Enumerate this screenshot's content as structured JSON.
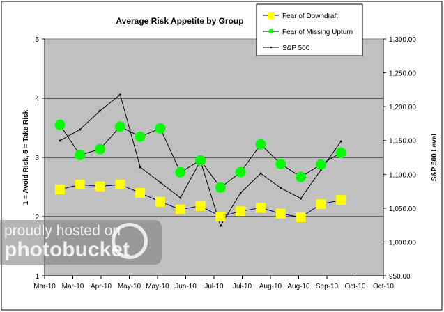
{
  "chart_data": {
    "type": "line",
    "title": "Average Risk Appetite by Group",
    "ylabel": "1 = Avoid Risk, 5 = Take Risk",
    "y2label": "S&P 500 Level",
    "ylim": [
      1,
      5
    ],
    "y2lim": [
      950,
      1300
    ],
    "yticks": [
      "1",
      "2",
      "3",
      "4",
      "5"
    ],
    "y2ticks": [
      "950.00",
      "1,000.00",
      "1,050.00",
      "1,100.00",
      "1,150.00",
      "1,200.00",
      "1,250.00",
      "1,300.00"
    ],
    "xticks": [
      "Mar-10",
      "Mar-10",
      "Apr-10",
      "May-10",
      "May-10",
      "Jun-10",
      "Jul-10",
      "Jul-10",
      "Aug-10",
      "Aug-10",
      "Sep-10",
      "Oct-10",
      "Oct-10"
    ],
    "grid": "horizontal major lines on left axis",
    "legend_position": "top-right",
    "plot_background": "#c0c0c0",
    "series": [
      {
        "name": "Fear of Downdraft",
        "axis": "left",
        "marker": "square",
        "color": "#ffff00",
        "line_color": "#000080",
        "values": [
          2.46,
          2.54,
          2.51,
          2.54,
          2.4,
          2.25,
          2.12,
          2.18,
          2.0,
          2.09,
          2.15,
          2.05,
          1.99,
          2.21,
          2.28
        ]
      },
      {
        "name": "Fear of Missing Upturn",
        "axis": "left",
        "marker": "circle",
        "color": "#00ff00",
        "line_color": "#000000",
        "values": [
          3.55,
          3.04,
          3.14,
          3.52,
          3.35,
          3.49,
          2.75,
          2.95,
          2.49,
          2.75,
          3.22,
          2.89,
          2.67,
          2.88,
          3.08
        ]
      },
      {
        "name": "S&P 500",
        "axis": "right",
        "marker": "dot",
        "color": "#000000",
        "line_color": "#000000",
        "values": [
          1149.7,
          1166.2,
          1194.0,
          1217.6,
          1110.6,
          1088.0,
          1065.3,
          1119.8,
          1024.0,
          1072.5,
          1101.3,
          1079.7,
          1064.3,
          1106.5,
          1148.7
        ]
      }
    ]
  },
  "watermark": {
    "line1": "proudly hosted on",
    "line2": "photobucket"
  }
}
